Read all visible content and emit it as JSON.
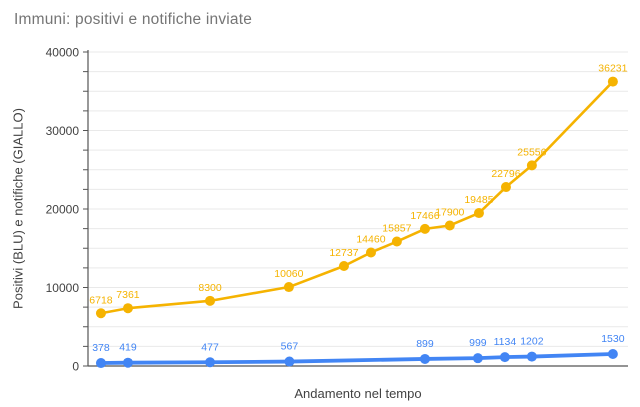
{
  "title": "Immuni: positivi e notifiche inviate",
  "chart_data": {
    "type": "line",
    "title": "Immuni: positivi e notifiche inviate",
    "xlabel": "Andamento nel tempo",
    "ylabel": "Positivi (BLU) e notifiche (GIALLO)",
    "ylim": [
      0,
      40000
    ],
    "y_major_ticks": [
      0,
      10000,
      20000,
      30000,
      40000
    ],
    "y_minor_step": 2500,
    "grid": true,
    "legend_position": "none",
    "x_tick_labels_visible": false,
    "colors": {
      "title_text": "#757575",
      "axis_text": "#424242",
      "axis_line": "#555555",
      "grid_line": "#e9e9e9",
      "background": "#ffffff"
    },
    "series": [
      {
        "name": "notifiche (GIALLO)",
        "color": "#F5B301",
        "points": [
          {
            "x_frac": 0.024,
            "value": 6718
          },
          {
            "x_frac": 0.074,
            "value": 7361
          },
          {
            "x_frac": 0.226,
            "value": 8300
          },
          {
            "x_frac": 0.372,
            "value": 10060
          },
          {
            "x_frac": 0.474,
            "value": 12737
          },
          {
            "x_frac": 0.524,
            "value": 14460
          },
          {
            "x_frac": 0.572,
            "value": 15857
          },
          {
            "x_frac": 0.624,
            "value": 17466
          },
          {
            "x_frac": 0.67,
            "value": 17900
          },
          {
            "x_frac": 0.724,
            "value": 19485
          },
          {
            "x_frac": 0.774,
            "value": 22796
          },
          {
            "x_frac": 0.822,
            "value": 25556
          },
          {
            "x_frac": 0.972,
            "value": 36231
          }
        ]
      },
      {
        "name": "positivi (BLU)",
        "color": "#4285F4",
        "points": [
          {
            "x_frac": 0.024,
            "value": 378
          },
          {
            "x_frac": 0.074,
            "value": 419
          },
          {
            "x_frac": 0.226,
            "value": 477
          },
          {
            "x_frac": 0.373,
            "value": 567
          },
          {
            "x_frac": 0.624,
            "value": 899
          },
          {
            "x_frac": 0.722,
            "value": 999
          },
          {
            "x_frac": 0.772,
            "value": 1134
          },
          {
            "x_frac": 0.822,
            "value": 1202
          },
          {
            "x_frac": 0.972,
            "value": 1530
          }
        ]
      }
    ]
  }
}
